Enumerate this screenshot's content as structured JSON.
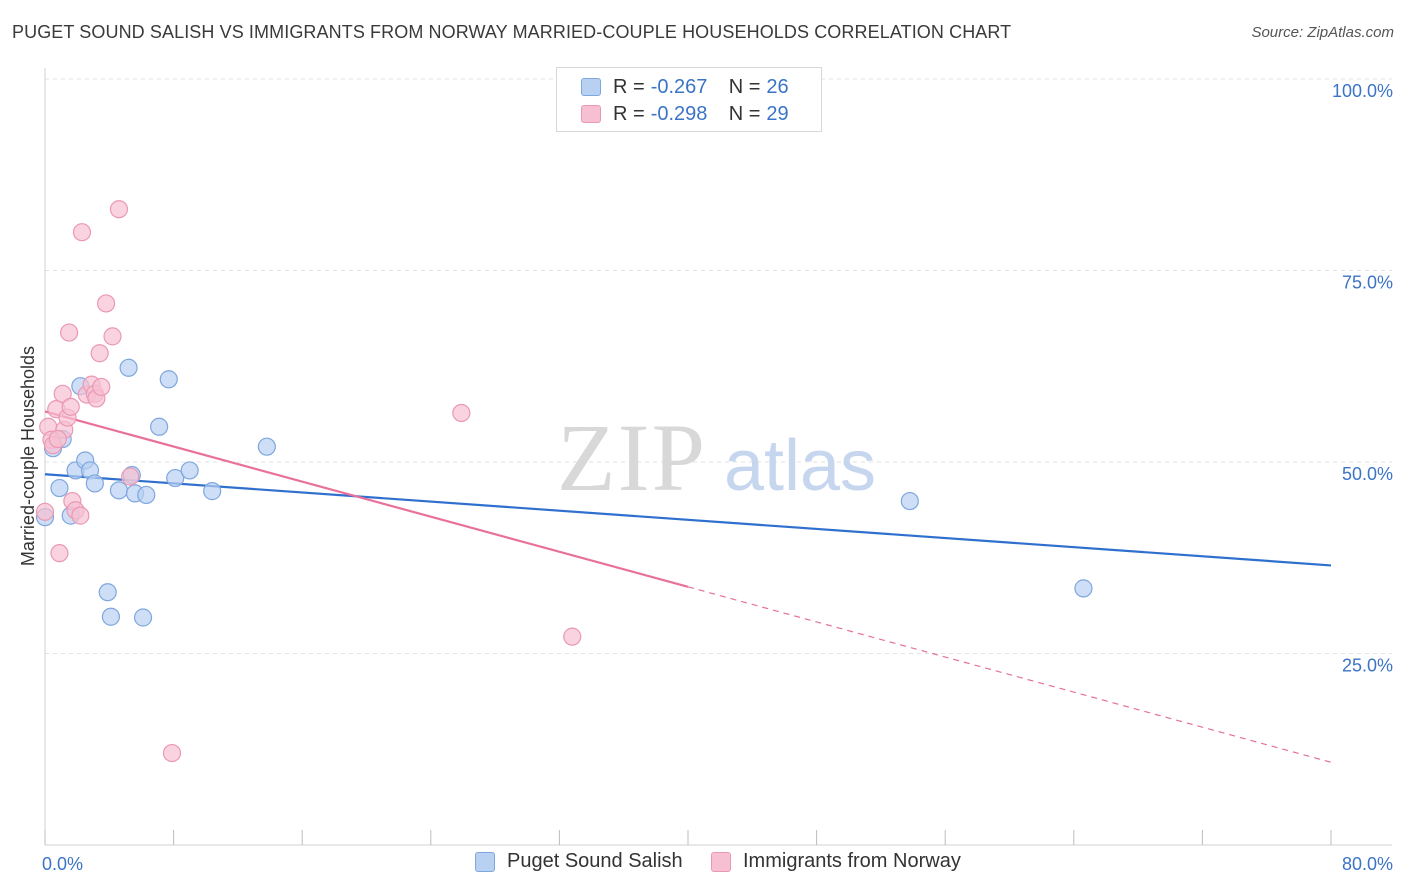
{
  "title": "PUGET SOUND SALISH VS IMMIGRANTS FROM NORWAY MARRIED-COUPLE HOUSEHOLDS CORRELATION CHART",
  "source": "Source: ZipAtlas.com",
  "watermark": {
    "zip": "ZIP",
    "atlas": "atlas"
  },
  "legend": {
    "rows": [
      {
        "r_label": "R =",
        "r_value": "-0.267",
        "n_label": "N =",
        "n_value": "26"
      },
      {
        "r_label": "R =",
        "r_value": "-0.298",
        "n_label": "N =",
        "n_value": "29"
      }
    ]
  },
  "colors": {
    "blue_fill": "#b8d0f2",
    "blue_stroke": "#7ea7de",
    "blue_line": "#2f6fce",
    "pink_fill": "#f6c0d2",
    "pink_stroke": "#eb98b4",
    "pink_line": "#e8709a",
    "tick_label": "#3b74c6",
    "grid": "#e2e2e2"
  },
  "chart_data": {
    "type": "scatter",
    "title": "PUGET SOUND SALISH VS IMMIGRANTS FROM NORWAY MARRIED-COUPLE HOUSEHOLDS CORRELATION CHART",
    "xlabel": "",
    "ylabel": "Married-couple Households",
    "xlim": [
      0,
      80
    ],
    "ylim": [
      0,
      105
    ],
    "x_tick_labels": [
      {
        "value": 0,
        "label": "0.0%"
      },
      {
        "value": 80,
        "label": "80.0%"
      }
    ],
    "y_tick_labels": [
      {
        "value": 100,
        "label": "100.0%"
      },
      {
        "value": 75,
        "label": "75.0%"
      },
      {
        "value": 50,
        "label": "50.0%"
      },
      {
        "value": 25,
        "label": "25.0%"
      }
    ],
    "grid": true,
    "legend_position": "top-center",
    "series": [
      {
        "name": "Puget Sound Salish",
        "points": [
          [
            0.0,
            42.8
          ],
          [
            0.5,
            51.8
          ],
          [
            0.9,
            46.6
          ],
          [
            1.1,
            53.0
          ],
          [
            1.6,
            43.0
          ],
          [
            1.9,
            48.9
          ],
          [
            2.2,
            59.9
          ],
          [
            2.5,
            50.2
          ],
          [
            2.8,
            48.9
          ],
          [
            3.1,
            47.2
          ],
          [
            3.9,
            33.0
          ],
          [
            4.1,
            29.8
          ],
          [
            4.6,
            46.3
          ],
          [
            5.2,
            62.3
          ],
          [
            5.4,
            48.3
          ],
          [
            5.6,
            45.9
          ],
          [
            6.1,
            29.7
          ],
          [
            6.3,
            45.7
          ],
          [
            7.1,
            54.6
          ],
          [
            7.7,
            60.8
          ],
          [
            8.1,
            47.9
          ],
          [
            9.0,
            48.9
          ],
          [
            10.4,
            46.2
          ],
          [
            13.8,
            52.0
          ],
          [
            53.8,
            44.9
          ],
          [
            64.6,
            33.5
          ]
        ],
        "trend": {
          "x0": 0.0,
          "y0": 48.4,
          "x1": 80.0,
          "y1": 36.5,
          "style": "solid"
        }
      },
      {
        "name": "Immigrants from Norway",
        "points": [
          [
            0.0,
            43.5
          ],
          [
            0.2,
            54.6
          ],
          [
            0.4,
            52.9
          ],
          [
            0.5,
            52.2
          ],
          [
            0.7,
            56.9
          ],
          [
            0.9,
            38.1
          ],
          [
            1.1,
            58.9
          ],
          [
            1.2,
            54.2
          ],
          [
            1.4,
            55.8
          ],
          [
            1.5,
            66.9
          ],
          [
            1.6,
            57.2
          ],
          [
            1.7,
            44.9
          ],
          [
            1.9,
            43.7
          ],
          [
            2.2,
            43.0
          ],
          [
            2.3,
            80.0
          ],
          [
            2.6,
            58.8
          ],
          [
            2.9,
            60.1
          ],
          [
            3.1,
            58.9
          ],
          [
            3.2,
            58.3
          ],
          [
            3.4,
            64.2
          ],
          [
            3.5,
            59.8
          ],
          [
            3.8,
            70.7
          ],
          [
            4.2,
            66.4
          ],
          [
            4.6,
            83.0
          ],
          [
            5.3,
            48.1
          ],
          [
            7.9,
            12.0
          ],
          [
            25.9,
            56.4
          ],
          [
            32.8,
            27.2
          ],
          [
            0.8,
            53.0
          ]
        ],
        "trend": {
          "x0": 0.0,
          "y0": 56.6,
          "x1": 40.0,
          "y1": 33.7,
          "dash_to_x": 80.0,
          "dash_to_y": 10.8,
          "style": "solid-then-dashed"
        }
      }
    ]
  },
  "bottom_legend": [
    {
      "label": "Puget Sound Salish"
    },
    {
      "label": "Immigrants from Norway"
    }
  ]
}
